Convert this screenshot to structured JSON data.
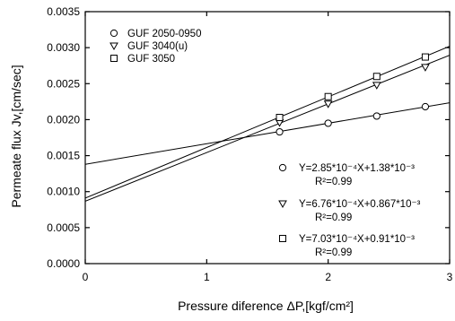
{
  "chart_data": {
    "type": "scatter",
    "xlabel": "Pressure diference ΔP,[kgf/cm²]",
    "ylabel": "Permeate flux Jv,[cm/sec]",
    "xlim": [
      0,
      3
    ],
    "ylim": [
      0,
      0.0035
    ],
    "x_ticks": [
      "0",
      "1",
      "2",
      "3"
    ],
    "y_ticks": [
      "0.0000",
      "0.0005",
      "0.0010",
      "0.0015",
      "0.0020",
      "0.0025",
      "0.0030",
      "0.0035"
    ],
    "x_tick_values": [
      0,
      1,
      2,
      3
    ],
    "y_tick_values": [
      0,
      0.0005,
      0.001,
      0.0015,
      0.002,
      0.0025,
      0.003,
      0.0035
    ],
    "legend_position": "top-left",
    "grid": false,
    "series": [
      {
        "name": "GUF 2050-0950",
        "marker": "circle",
        "x": [
          1.6,
          2.0,
          2.4,
          2.8
        ],
        "y": [
          0.00183,
          0.00195,
          0.00205,
          0.00218
        ],
        "fit": {
          "slope": 0.000285,
          "intercept": 0.00138
        },
        "equation": "Y=2.85*10⁻⁴X+1.38*10⁻³",
        "r2": "R²=0.99"
      },
      {
        "name": "GUF 3040(u)",
        "marker": "triangle-down",
        "x": [
          1.6,
          2.0,
          2.4,
          2.8
        ],
        "y": [
          0.00196,
          0.00222,
          0.00248,
          0.00273
        ],
        "fit": {
          "slope": 0.000676,
          "intercept": 0.000867
        },
        "equation": "Y=6.76*10⁻⁴X+0.867*10⁻³",
        "r2": "R²=0.99"
      },
      {
        "name": "GUF 3050",
        "marker": "square",
        "x": [
          1.6,
          2.0,
          2.4,
          2.8
        ],
        "y": [
          0.00203,
          0.00232,
          0.0026,
          0.00287
        ],
        "fit": {
          "slope": 0.000703,
          "intercept": 0.00091
        },
        "equation": "Y=7.03*10⁻⁴X+0.91*10⁻³",
        "r2": "R²=0.99"
      }
    ]
  }
}
